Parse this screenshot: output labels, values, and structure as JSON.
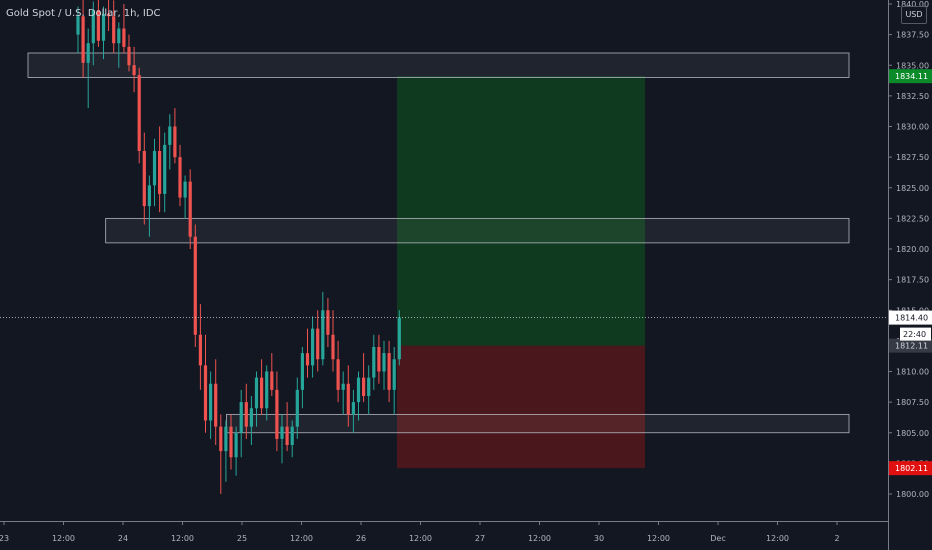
{
  "header": {
    "symbol_title": "Gold Spot / U.S. Dollar, 1h, IDC",
    "currency": "USD"
  },
  "colors": {
    "background": "#131722",
    "up": "#26a69a",
    "down": "#ef5350",
    "profit_zone": "#0f3a1f",
    "loss_zone": "#4a171c",
    "zone_box": "#2a2e39",
    "last_price_badge": "#363a45",
    "target_badge": "#0a8a28",
    "stop_badge": "#e01010"
  },
  "chart_data": {
    "type": "candlestick",
    "title": "Gold Spot / U.S. Dollar, 1h, IDC",
    "ylim": [
      1798,
      1840
    ],
    "y_ticks": [
      "1840.00",
      "1837.50",
      "1835.00",
      "1832.50",
      "1830.00",
      "1827.50",
      "1825.00",
      "1822.50",
      "1820.00",
      "1817.50",
      "1815.00",
      "1812.50",
      "1810.00",
      "1807.50",
      "1805.00",
      "1802.50",
      "1800.00"
    ],
    "x_ticks": [
      "23",
      "12:00",
      "24",
      "12:00",
      "25",
      "12:00",
      "26",
      "12:00",
      "27",
      "12:00",
      "30",
      "12:00",
      "Dec",
      "12:00",
      "2"
    ],
    "price_labels": {
      "target": "1834.11",
      "current": "1814.40",
      "countdown": "22:40",
      "entry": "1812.11",
      "stop": "1802.11"
    },
    "zones": [
      {
        "y_top": 1836.0,
        "y_bottom": 1834.0,
        "x_start": 0.05,
        "x_end": 1.0
      },
      {
        "y_top": 1822.5,
        "y_bottom": 1820.5,
        "x_start": 0.14,
        "x_end": 1.0
      },
      {
        "y_top": 1806.5,
        "y_bottom": 1805.0,
        "x_start": 0.28,
        "x_end": 1.0
      }
    ],
    "position": {
      "entry": 1812.11,
      "target": 1834.11,
      "stop": 1802.11
    },
    "candles": [
      [
        1837.5,
        1839.8,
        1836.0,
        1839.0
      ],
      [
        1839.0,
        1840.5,
        1834.0,
        1835.2
      ],
      [
        1835.2,
        1838.0,
        1831.5,
        1836.8
      ],
      [
        1836.8,
        1840.2,
        1835.0,
        1839.5
      ],
      [
        1839.5,
        1840.5,
        1836.5,
        1837.0
      ],
      [
        1837.0,
        1839.8,
        1835.5,
        1839.2
      ],
      [
        1839.2,
        1840.5,
        1837.8,
        1839.0
      ],
      [
        1839.0,
        1840.3,
        1836.0,
        1836.8
      ],
      [
        1836.8,
        1838.5,
        1834.8,
        1838.0
      ],
      [
        1838.0,
        1840.0,
        1836.0,
        1836.5
      ],
      [
        1836.5,
        1837.5,
        1834.5,
        1835.0
      ],
      [
        1835.0,
        1836.5,
        1832.8,
        1834.2
      ],
      [
        1834.2,
        1834.8,
        1827.0,
        1828.0
      ],
      [
        1828.0,
        1829.5,
        1822.0,
        1823.5
      ],
      [
        1823.5,
        1826.0,
        1821.0,
        1825.2
      ],
      [
        1825.2,
        1829.0,
        1823.5,
        1828.0
      ],
      [
        1828.0,
        1830.0,
        1823.0,
        1824.5
      ],
      [
        1824.5,
        1829.5,
        1823.0,
        1828.5
      ],
      [
        1828.5,
        1831.0,
        1826.5,
        1830.0
      ],
      [
        1830.0,
        1831.5,
        1827.0,
        1827.5
      ],
      [
        1827.5,
        1828.5,
        1823.5,
        1824.2
      ],
      [
        1824.2,
        1826.0,
        1822.5,
        1825.5
      ],
      [
        1825.5,
        1826.5,
        1820.0,
        1821.0
      ],
      [
        1821.0,
        1822.0,
        1812.0,
        1813.0
      ],
      [
        1813.0,
        1815.5,
        1808.5,
        1810.5
      ],
      [
        1810.5,
        1813.0,
        1805.0,
        1806.0
      ],
      [
        1806.0,
        1810.0,
        1804.5,
        1809.0
      ],
      [
        1809.0,
        1811.0,
        1804.0,
        1805.5
      ],
      [
        1805.5,
        1806.5,
        1800.0,
        1803.5
      ],
      [
        1803.5,
        1806.0,
        1801.0,
        1805.5
      ],
      [
        1805.5,
        1806.5,
        1802.0,
        1803.0
      ],
      [
        1803.0,
        1805.5,
        1801.5,
        1805.0
      ],
      [
        1805.0,
        1808.5,
        1803.0,
        1807.5
      ],
      [
        1807.5,
        1809.0,
        1804.5,
        1805.5
      ],
      [
        1805.5,
        1808.0,
        1804.0,
        1807.0
      ],
      [
        1807.0,
        1810.0,
        1805.5,
        1809.5
      ],
      [
        1809.5,
        1811.0,
        1806.5,
        1807.0
      ],
      [
        1807.0,
        1810.5,
        1806.0,
        1810.0
      ],
      [
        1810.0,
        1811.5,
        1808.0,
        1808.5
      ],
      [
        1808.5,
        1810.0,
        1803.5,
        1804.5
      ],
      [
        1804.5,
        1806.5,
        1802.5,
        1805.5
      ],
      [
        1805.5,
        1807.5,
        1803.5,
        1804.0
      ],
      [
        1804.0,
        1806.0,
        1803.0,
        1805.5
      ],
      [
        1805.5,
        1809.5,
        1804.5,
        1808.5
      ],
      [
        1808.5,
        1812.0,
        1807.0,
        1811.5
      ],
      [
        1811.5,
        1813.5,
        1809.5,
        1810.5
      ],
      [
        1810.5,
        1814.5,
        1809.5,
        1813.5
      ],
      [
        1813.5,
        1815.0,
        1810.0,
        1811.0
      ],
      [
        1811.0,
        1816.5,
        1810.5,
        1815.0
      ],
      [
        1815.0,
        1816.0,
        1812.0,
        1813.0
      ],
      [
        1813.0,
        1815.0,
        1810.0,
        1811.0
      ],
      [
        1811.0,
        1812.5,
        1807.5,
        1808.5
      ],
      [
        1808.5,
        1810.0,
        1806.5,
        1809.0
      ],
      [
        1809.0,
        1810.5,
        1805.5,
        1806.5
      ],
      [
        1806.5,
        1808.5,
        1805.0,
        1807.5
      ],
      [
        1807.5,
        1810.0,
        1806.0,
        1809.5
      ],
      [
        1809.5,
        1811.5,
        1807.5,
        1808.0
      ],
      [
        1808.0,
        1810.5,
        1806.5,
        1809.5
      ],
      [
        1809.5,
        1813.0,
        1808.5,
        1812.0
      ],
      [
        1812.0,
        1813.0,
        1809.0,
        1810.0
      ],
      [
        1810.0,
        1812.5,
        1808.5,
        1811.5
      ],
      [
        1811.5,
        1812.5,
        1807.5,
        1808.5
      ],
      [
        1808.5,
        1812.0,
        1806.5,
        1811.0
      ],
      [
        1811.0,
        1815.0,
        1810.5,
        1814.4
      ]
    ]
  }
}
